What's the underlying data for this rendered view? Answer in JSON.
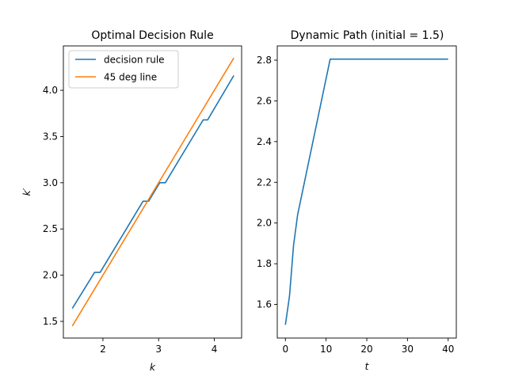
{
  "chart_data": [
    {
      "type": "line",
      "title": "Optimal Decision Rule",
      "xlabel": "k",
      "ylabel": "k′",
      "xlim": [
        1.29,
        4.49
      ],
      "ylim": [
        1.32,
        4.48
      ],
      "xticks": [
        2,
        3,
        4
      ],
      "yticks": [
        1.5,
        2.0,
        2.5,
        3.0,
        3.5,
        4.0
      ],
      "xtick_labels": [
        "2",
        "3",
        "4"
      ],
      "ytick_labels": [
        "1.5",
        "2.0",
        "2.5",
        "3.0",
        "3.5",
        "4.0"
      ],
      "grid": false,
      "legend_position": "upper-left",
      "series": [
        {
          "name": "decision rule",
          "color": "#1f77b4",
          "x": [
            1.45,
            1.85,
            1.95,
            2.72,
            2.82,
            3.02,
            3.12,
            3.8,
            3.88,
            4.35
          ],
          "y": [
            1.64,
            2.03,
            2.03,
            2.8,
            2.8,
            3.0,
            3.0,
            3.68,
            3.68,
            4.16
          ]
        },
        {
          "name": "45 deg line",
          "color": "#ff7f0e",
          "x": [
            1.45,
            4.35
          ],
          "y": [
            1.45,
            4.35
          ]
        }
      ]
    },
    {
      "type": "line",
      "title": "Dynamic Path (initial = 1.5)",
      "xlabel": "t",
      "ylabel": "",
      "xlim": [
        -2,
        42
      ],
      "ylim": [
        1.435,
        2.87
      ],
      "xticks": [
        0,
        10,
        20,
        30,
        40
      ],
      "yticks": [
        1.6,
        1.8,
        2.0,
        2.2,
        2.4,
        2.6,
        2.8
      ],
      "xtick_labels": [
        "0",
        "10",
        "20",
        "30",
        "40"
      ],
      "ytick_labels": [
        "1.6",
        "1.8",
        "2.0",
        "2.2",
        "2.4",
        "2.6",
        "2.8"
      ],
      "grid": false,
      "series": [
        {
          "name": "",
          "color": "#1f77b4",
          "x": [
            0,
            1,
            2,
            3,
            11,
            12,
            40
          ],
          "y": [
            1.5,
            1.64,
            1.89,
            2.04,
            2.805,
            2.805,
            2.805
          ]
        }
      ]
    }
  ]
}
